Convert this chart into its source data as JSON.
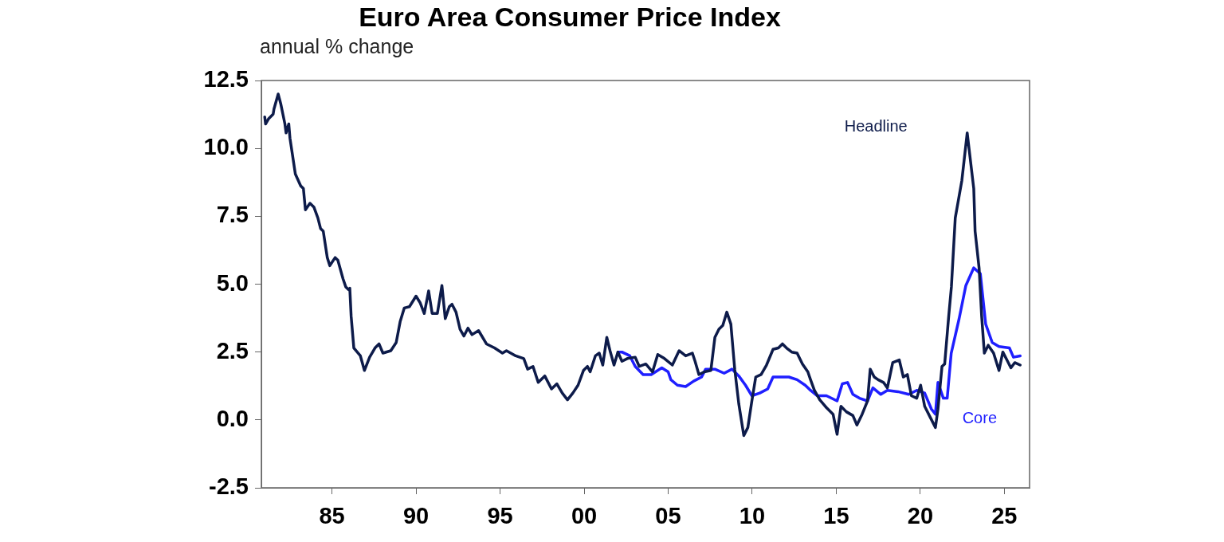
{
  "chart_data": {
    "type": "line",
    "title": "Euro Area Consumer Price Index",
    "ylabel": "annual % change",
    "xlim": [
      1980.8,
      2026.5
    ],
    "xticks": [
      {
        "value": 1985,
        "label": "85"
      },
      {
        "value": 1990,
        "label": "90"
      },
      {
        "value": 1995,
        "label": "95"
      },
      {
        "value": 2000,
        "label": "00"
      },
      {
        "value": 2005,
        "label": "05"
      },
      {
        "value": 2010,
        "label": "10"
      },
      {
        "value": 2015,
        "label": "15"
      },
      {
        "value": 2020,
        "label": "20"
      },
      {
        "value": 2025,
        "label": "25"
      }
    ],
    "ylim": [
      -2.5,
      12.5
    ],
    "yticks": [
      -2.5,
      {
        "value": 0,
        "label": "0.0"
      },
      2.5,
      {
        "value": 5,
        "label": "5.0"
      },
      7.5,
      {
        "value": 10,
        "label": "10.0"
      },
      12.5
    ],
    "grid": false,
    "legend": false,
    "marker": "none",
    "line_style": "solid",
    "series": [
      {
        "name": "Headline",
        "color": "#0d1b4a",
        "x": [
          1981.0,
          1981.05,
          1981.24,
          1981.5,
          1981.55,
          1981.8,
          1981.95,
          1982.2,
          1982.27,
          1982.43,
          1982.5,
          1982.82,
          1983.14,
          1983.3,
          1983.42,
          1983.69,
          1983.93,
          1984.16,
          1984.32,
          1984.48,
          1984.72,
          1984.87,
          1985.19,
          1985.35,
          1985.66,
          1985.82,
          1985.98,
          1986.06,
          1986.14,
          1986.3,
          1986.69,
          1986.93,
          1987.24,
          1987.56,
          1987.8,
          1988.03,
          1988.5,
          1988.82,
          1989.06,
          1989.3,
          1989.61,
          1990.0,
          1990.25,
          1990.49,
          1990.75,
          1990.96,
          1991.27,
          1991.54,
          1991.74,
          1991.98,
          1992.14,
          1992.38,
          1992.62,
          1992.85,
          1993.09,
          1993.33,
          1993.72,
          1994.19,
          1994.67,
          1995.14,
          1995.38,
          1995.93,
          1996.41,
          1996.64,
          1996.96,
          1997.27,
          1997.66,
          1998.06,
          1998.38,
          1998.7,
          1999.01,
          1999.33,
          1999.64,
          1999.96,
          2000.2,
          2000.36,
          2000.67,
          2000.9,
          2001.11,
          2001.35,
          2001.54,
          2001.78,
          2002.01,
          2002.25,
          2002.57,
          2003.04,
          2003.28,
          2003.67,
          2004.07,
          2004.38,
          2004.78,
          2005.25,
          2005.65,
          2006.04,
          2006.44,
          2006.6,
          2006.83,
          2007.15,
          2007.54,
          2007.78,
          2008.02,
          2008.25,
          2008.49,
          2008.73,
          2008.96,
          2009.2,
          2009.5,
          2009.74,
          2009.98,
          2010.21,
          2010.53,
          2010.85,
          2011.24,
          2011.56,
          2011.8,
          2012.04,
          2012.35,
          2012.67,
          2012.99,
          2013.31,
          2013.47,
          2013.7,
          2014.02,
          2014.42,
          2014.81,
          2015.05,
          2015.28,
          2015.6,
          2015.99,
          2016.23,
          2016.54,
          2016.86,
          2017.02,
          2017.26,
          2017.49,
          2017.81,
          2018.04,
          2018.36,
          2018.75,
          2018.99,
          2019.23,
          2019.47,
          2019.79,
          2020.02,
          2020.26,
          2020.58,
          2020.9,
          2021.05,
          2021.29,
          2021.45,
          2021.69,
          2021.85,
          2022.08,
          2022.47,
          2022.79,
          2023.18,
          2023.26,
          2023.5,
          2023.65,
          2023.81,
          2024.04,
          2024.36,
          2024.68,
          2024.91,
          2025.15,
          2025.39,
          2025.62,
          2025.94
        ],
        "values": [
          11.16,
          10.9,
          11.1,
          11.26,
          11.45,
          12.0,
          11.65,
          10.9,
          10.57,
          10.9,
          10.38,
          9.06,
          8.62,
          8.52,
          7.74,
          7.98,
          7.83,
          7.44,
          7.05,
          6.95,
          5.98,
          5.68,
          5.98,
          5.88,
          5.19,
          4.9,
          4.8,
          4.85,
          3.82,
          2.65,
          2.36,
          1.82,
          2.31,
          2.65,
          2.8,
          2.46,
          2.55,
          2.85,
          3.63,
          4.12,
          4.17,
          4.56,
          4.31,
          3.92,
          4.75,
          3.92,
          3.92,
          4.95,
          3.73,
          4.17,
          4.26,
          3.97,
          3.34,
          3.09,
          3.38,
          3.14,
          3.29,
          2.8,
          2.65,
          2.46,
          2.55,
          2.36,
          2.26,
          1.87,
          1.97,
          1.38,
          1.62,
          1.14,
          1.33,
          0.99,
          0.74,
          0.99,
          1.28,
          1.82,
          1.97,
          1.77,
          2.36,
          2.46,
          2.02,
          3.04,
          2.55,
          2.02,
          2.5,
          2.16,
          2.26,
          2.31,
          1.97,
          2.06,
          1.77,
          2.41,
          2.26,
          2.02,
          2.55,
          2.36,
          2.46,
          2.16,
          1.67,
          1.77,
          1.82,
          3.04,
          3.34,
          3.48,
          3.97,
          3.53,
          1.87,
          0.6,
          -0.58,
          -0.28,
          0.7,
          1.58,
          1.67,
          2.02,
          2.6,
          2.65,
          2.8,
          2.65,
          2.5,
          2.46,
          2.06,
          1.77,
          1.48,
          1.09,
          0.74,
          0.45,
          0.21,
          -0.53,
          0.5,
          0.3,
          0.16,
          -0.19,
          0.21,
          0.7,
          1.87,
          1.58,
          1.48,
          1.38,
          1.18,
          2.11,
          2.21,
          1.58,
          1.67,
          0.89,
          0.8,
          1.28,
          0.5,
          0.11,
          -0.28,
          0.4,
          1.97,
          2.06,
          3.82,
          4.9,
          7.44,
          8.81,
          10.57,
          8.52,
          6.95,
          5.58,
          3.82,
          2.46,
          2.75,
          2.46,
          1.82,
          2.5,
          2.21,
          1.92,
          2.11,
          2.02
        ]
      },
      {
        "name": "Core",
        "color": "#1f1fff",
        "x": [
          2002.01,
          2002.25,
          2002.72,
          2003.04,
          2003.51,
          2003.99,
          2004.62,
          2005.0,
          2005.16,
          2005.55,
          2006.04,
          2006.52,
          2006.99,
          2007.23,
          2007.78,
          2008.33,
          2008.8,
          2009.2,
          2009.6,
          2009.98,
          2010.45,
          2010.92,
          2011.24,
          2011.71,
          2012.18,
          2012.67,
          2013.15,
          2013.47,
          2013.86,
          2014.42,
          2015.05,
          2015.36,
          2015.67,
          2015.99,
          2016.38,
          2016.86,
          2017.18,
          2017.65,
          2018.04,
          2018.68,
          2019.31,
          2019.79,
          2020.26,
          2020.66,
          2020.9,
          2021.05,
          2021.37,
          2021.6,
          2021.84,
          2022.31,
          2022.71,
          2023.18,
          2023.57,
          2023.89,
          2024.28,
          2024.68,
          2025.3,
          2025.54,
          2025.94
        ],
        "values": [
          2.5,
          2.5,
          2.36,
          1.97,
          1.67,
          1.67,
          1.92,
          1.77,
          1.48,
          1.28,
          1.23,
          1.43,
          1.58,
          1.87,
          1.87,
          1.72,
          1.87,
          1.62,
          1.28,
          0.89,
          0.99,
          1.14,
          1.58,
          1.58,
          1.58,
          1.48,
          1.28,
          1.09,
          0.89,
          0.89,
          0.7,
          1.33,
          1.38,
          0.94,
          0.8,
          0.7,
          1.18,
          0.94,
          1.09,
          1.04,
          0.94,
          1.09,
          0.99,
          0.4,
          0.21,
          1.38,
          0.8,
          0.8,
          2.46,
          3.73,
          4.95,
          5.6,
          5.39,
          3.53,
          2.85,
          2.7,
          2.65,
          2.31,
          2.36
        ]
      }
    ]
  }
}
